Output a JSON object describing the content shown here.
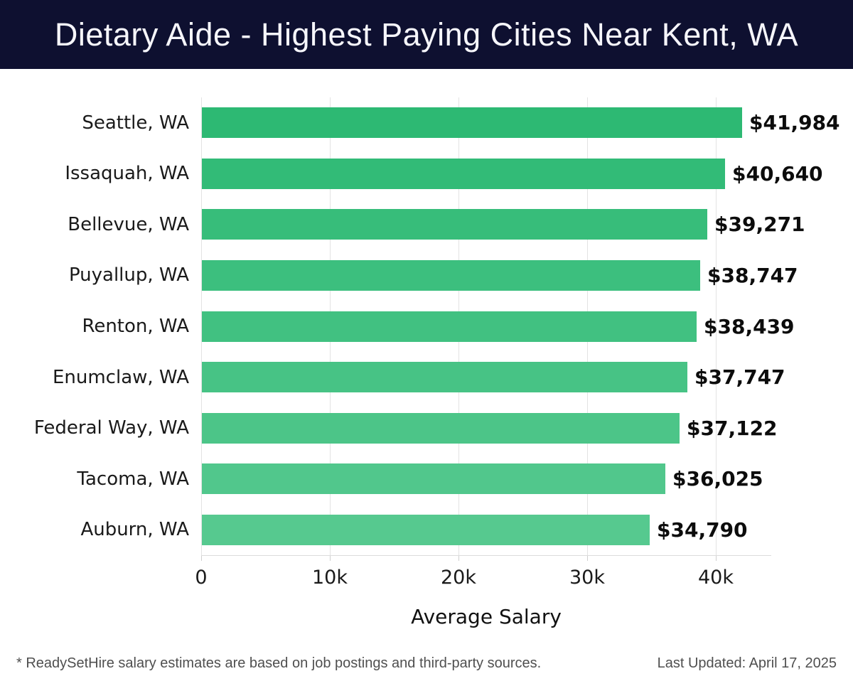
{
  "header": {
    "title": "Dietary Aide - Highest Paying Cities Near Kent, WA"
  },
  "chart_data": {
    "type": "bar",
    "orientation": "horizontal",
    "title": "Dietary Aide - Highest Paying Cities Near Kent, WA",
    "categories": [
      "Seattle, WA",
      "Issaquah, WA",
      "Bellevue, WA",
      "Puyallup, WA",
      "Renton, WA",
      "Enumclaw, WA",
      "Federal Way, WA",
      "Tacoma, WA",
      "Auburn, WA"
    ],
    "values": [
      41984,
      40640,
      39271,
      38747,
      38439,
      37747,
      37122,
      36025,
      34790
    ],
    "value_labels": [
      "$41,984",
      "$40,640",
      "$39,271",
      "$38,747",
      "$38,439",
      "$37,747",
      "$37,122",
      "$36,025",
      "$34,790"
    ],
    "xlabel": "Average Salary",
    "ylabel": "",
    "xlim": [
      0,
      44300
    ],
    "xticks": {
      "values": [
        0,
        10000,
        20000,
        30000,
        40000
      ],
      "labels": [
        "0",
        "10k",
        "20k",
        "30k",
        "40k"
      ]
    },
    "grid": "vertical-only",
    "legend": "none",
    "bar_colors": [
      "#2db973",
      "#32bb77",
      "#37bd7a",
      "#3cbf7e",
      "#41c181",
      "#47c385",
      "#4cc588",
      "#51c78c",
      "#56c98f"
    ]
  },
  "footer": {
    "note": "* ReadySetHire salary estimates are based on job postings and third-party sources.",
    "last_updated": "Last Updated: April 17, 2025"
  },
  "colors": {
    "header_bg": "#0e1030",
    "title_text": "#f6f6fb",
    "grid": "#e3e3e3",
    "value_text": "#0c0c0c",
    "footer_text": "#4f4f4f"
  }
}
